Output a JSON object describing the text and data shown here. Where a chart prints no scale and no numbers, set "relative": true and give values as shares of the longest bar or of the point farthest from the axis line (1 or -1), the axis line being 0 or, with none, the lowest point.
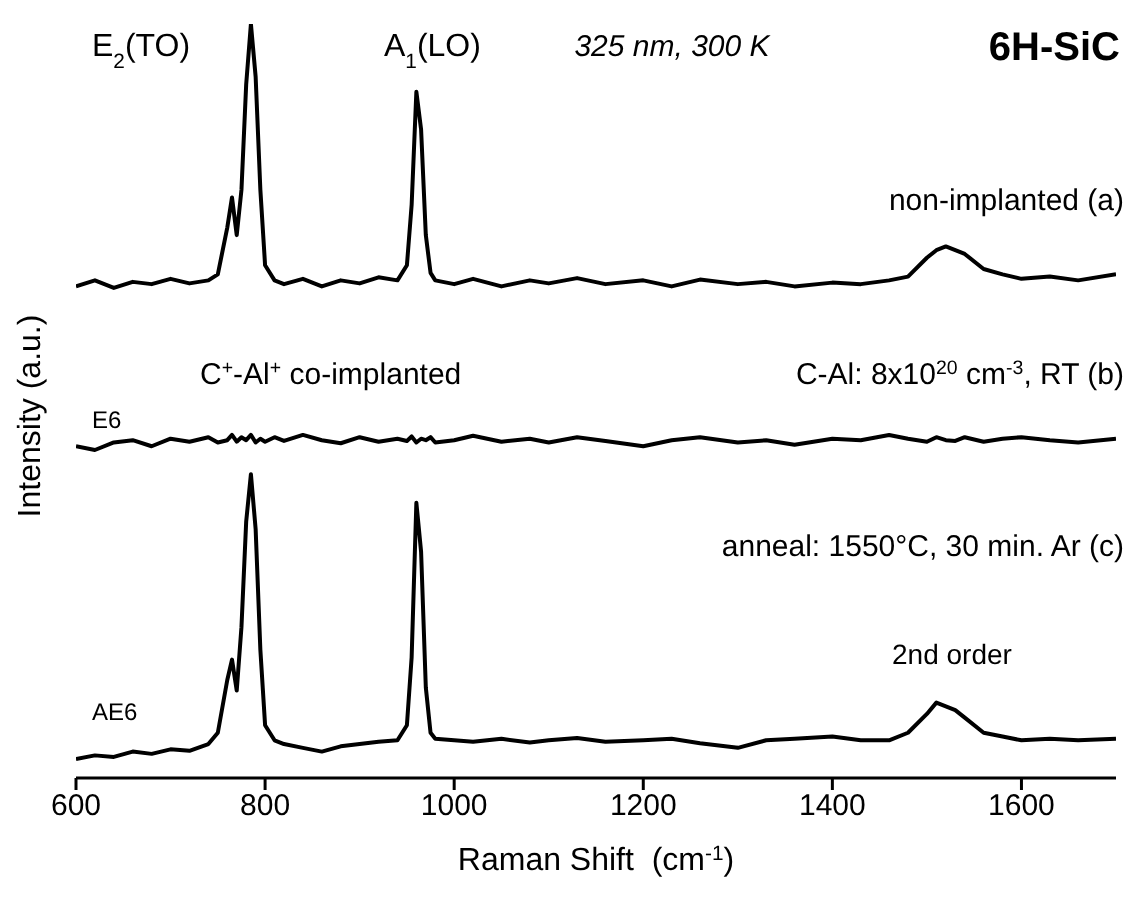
{
  "chart_data": {
    "type": "line",
    "relative": true,
    "xlabel": "Raman Shift  (cm$^{-1}$)",
    "ylabel": "Intensity (a.u.)",
    "xlim": [
      600,
      1700
    ],
    "xticks": [
      600,
      800,
      1000,
      1200,
      1400,
      1600
    ],
    "marker": "none",
    "annotations": [
      "E$_{2}$(TO)",
      "A$_{1}$(LO)",
      "325 nm, 300 K",
      "6H-SiC",
      "non-implanted (a)",
      "C$^{+}$-Al$^{+}$ co-implanted",
      "E6",
      "C-Al: 8x10$^{20}$ cm$^{-3}$, RT (b)",
      "anneal: 1550°C, 30 min. Ar (c)",
      "AE6",
      "2nd order"
    ],
    "x": [
      600,
      620,
      640,
      660,
      680,
      700,
      720,
      740,
      750,
      760,
      765,
      770,
      775,
      780,
      785,
      790,
      795,
      800,
      810,
      820,
      840,
      860,
      880,
      900,
      920,
      940,
      950,
      955,
      960,
      965,
      970,
      975,
      980,
      1000,
      1020,
      1050,
      1080,
      1100,
      1130,
      1160,
      1200,
      1230,
      1260,
      1300,
      1330,
      1360,
      1400,
      1430,
      1460,
      1480,
      1500,
      1510,
      1520,
      1530,
      1540,
      1560,
      1580,
      1600,
      1630,
      1660,
      1700
    ],
    "series": [
      {
        "color": "#000000",
        "values": [
          0.652,
          0.66,
          0.65,
          0.658,
          0.655,
          0.662,
          0.656,
          0.66,
          0.668,
          0.73,
          0.77,
          0.72,
          0.78,
          0.92,
          1.0,
          0.93,
          0.78,
          0.68,
          0.66,
          0.655,
          0.662,
          0.652,
          0.66,
          0.656,
          0.664,
          0.66,
          0.68,
          0.76,
          0.91,
          0.86,
          0.72,
          0.67,
          0.66,
          0.655,
          0.662,
          0.652,
          0.66,
          0.656,
          0.663,
          0.655,
          0.66,
          0.652,
          0.661,
          0.655,
          0.658,
          0.652,
          0.657,
          0.655,
          0.66,
          0.665,
          0.69,
          0.7,
          0.705,
          0.7,
          0.695,
          0.675,
          0.668,
          0.662,
          0.665,
          0.66,
          0.668
        ]
      },
      {
        "color": "#000000",
        "values": [
          0.44,
          0.435,
          0.445,
          0.448,
          0.44,
          0.45,
          0.446,
          0.452,
          0.445,
          0.448,
          0.455,
          0.446,
          0.452,
          0.448,
          0.455,
          0.445,
          0.45,
          0.446,
          0.452,
          0.447,
          0.455,
          0.448,
          0.444,
          0.452,
          0.446,
          0.45,
          0.447,
          0.453,
          0.445,
          0.45,
          0.448,
          0.452,
          0.445,
          0.448,
          0.454,
          0.446,
          0.45,
          0.445,
          0.452,
          0.447,
          0.44,
          0.448,
          0.452,
          0.445,
          0.448,
          0.442,
          0.45,
          0.448,
          0.455,
          0.45,
          0.446,
          0.452,
          0.448,
          0.447,
          0.452,
          0.446,
          0.45,
          0.452,
          0.448,
          0.445,
          0.45
        ]
      },
      {
        "color": "#000000",
        "values": [
          0.025,
          0.03,
          0.028,
          0.035,
          0.032,
          0.038,
          0.036,
          0.045,
          0.06,
          0.13,
          0.157,
          0.116,
          0.2,
          0.34,
          0.403,
          0.33,
          0.17,
          0.07,
          0.05,
          0.045,
          0.04,
          0.035,
          0.042,
          0.045,
          0.048,
          0.05,
          0.07,
          0.16,
          0.365,
          0.3,
          0.12,
          0.06,
          0.052,
          0.05,
          0.048,
          0.052,
          0.047,
          0.05,
          0.053,
          0.048,
          0.05,
          0.052,
          0.046,
          0.04,
          0.05,
          0.052,
          0.055,
          0.05,
          0.05,
          0.06,
          0.085,
          0.1,
          0.095,
          0.09,
          0.08,
          0.06,
          0.055,
          0.05,
          0.052,
          0.05,
          0.052
        ]
      }
    ]
  }
}
